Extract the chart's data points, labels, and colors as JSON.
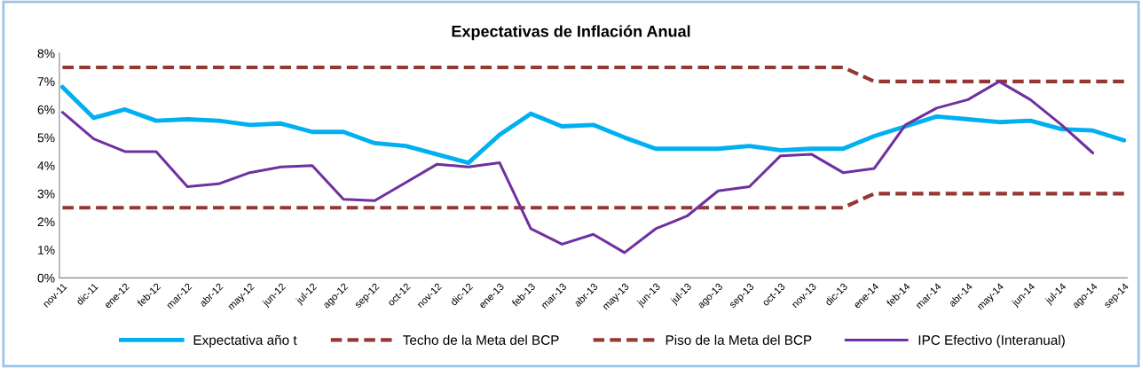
{
  "chart_data": {
    "type": "line",
    "title": "Expectativas de Inflación Anual",
    "categories": [
      "nov-11",
      "dic-11",
      "ene-12",
      "feb-12",
      "mar-12",
      "abr-12",
      "may-12",
      "jun-12",
      "jul-12",
      "ago-12",
      "sep-12",
      "oct-12",
      "nov-12",
      "dic-12",
      "ene-13",
      "feb-13",
      "mar-13",
      "abr-13",
      "may-13",
      "jun-13",
      "jul-13",
      "ago-13",
      "sep-13",
      "oct-13",
      "nov-13",
      "dic-13",
      "ene-14",
      "feb-14",
      "mar-14",
      "abr-14",
      "may-14",
      "jun-14",
      "jul-14",
      "ago-14",
      "sep-14"
    ],
    "series": [
      {
        "name": "Expectativa año t",
        "color": "#00b0f0",
        "line_style": "solid",
        "values": [
          6.8,
          5.7,
          6.0,
          5.6,
          5.65,
          5.6,
          5.45,
          5.5,
          5.2,
          5.2,
          4.8,
          4.7,
          4.4,
          4.1,
          5.1,
          5.85,
          5.4,
          5.45,
          5.0,
          4.6,
          4.6,
          4.6,
          4.7,
          4.55,
          4.6,
          4.6,
          5.05,
          5.4,
          5.75,
          5.65,
          5.55,
          5.6,
          5.3,
          5.25,
          4.9
        ]
      },
      {
        "name": "Techo de la Meta del BCP",
        "color": "#953735",
        "line_style": "dashed",
        "values": [
          7.5,
          7.5,
          7.5,
          7.5,
          7.5,
          7.5,
          7.5,
          7.5,
          7.5,
          7.5,
          7.5,
          7.5,
          7.5,
          7.5,
          7.5,
          7.5,
          7.5,
          7.5,
          7.5,
          7.5,
          7.5,
          7.5,
          7.5,
          7.5,
          7.5,
          7.5,
          7.0,
          7.0,
          7.0,
          7.0,
          7.0,
          7.0,
          7.0,
          7.0,
          7.0
        ]
      },
      {
        "name": "Piso de la Meta del BCP",
        "color": "#953735",
        "line_style": "dashed",
        "values": [
          2.5,
          2.5,
          2.5,
          2.5,
          2.5,
          2.5,
          2.5,
          2.5,
          2.5,
          2.5,
          2.5,
          2.5,
          2.5,
          2.5,
          2.5,
          2.5,
          2.5,
          2.5,
          2.5,
          2.5,
          2.5,
          2.5,
          2.5,
          2.5,
          2.5,
          2.5,
          3.0,
          3.0,
          3.0,
          3.0,
          3.0,
          3.0,
          3.0,
          3.0,
          3.0
        ]
      },
      {
        "name": "IPC Efectivo (Interanual)",
        "color": "#7030a0",
        "line_style": "solid",
        "values": [
          5.9,
          4.95,
          4.5,
          4.5,
          3.25,
          3.35,
          3.75,
          3.95,
          4.0,
          2.8,
          2.75,
          3.4,
          4.05,
          3.95,
          4.1,
          1.75,
          1.2,
          1.55,
          0.9,
          1.75,
          2.2,
          3.1,
          3.25,
          4.35,
          4.4,
          3.75,
          3.9,
          5.45,
          6.05,
          6.35,
          7.0,
          6.35,
          5.45,
          4.45,
          null
        ]
      }
    ],
    "ylim": [
      0,
      8
    ],
    "yticks": [
      {
        "value": 0,
        "label": "0%"
      },
      {
        "value": 1,
        "label": "1%"
      },
      {
        "value": 2,
        "label": "2%"
      },
      {
        "value": 3,
        "label": "3%"
      },
      {
        "value": 4,
        "label": "4%"
      },
      {
        "value": 5,
        "label": "5%"
      },
      {
        "value": 6,
        "label": "6%"
      },
      {
        "value": 7,
        "label": "7%"
      },
      {
        "value": 8,
        "label": "8%"
      }
    ],
    "grid": false,
    "legend": "bottom",
    "marker": "none"
  }
}
